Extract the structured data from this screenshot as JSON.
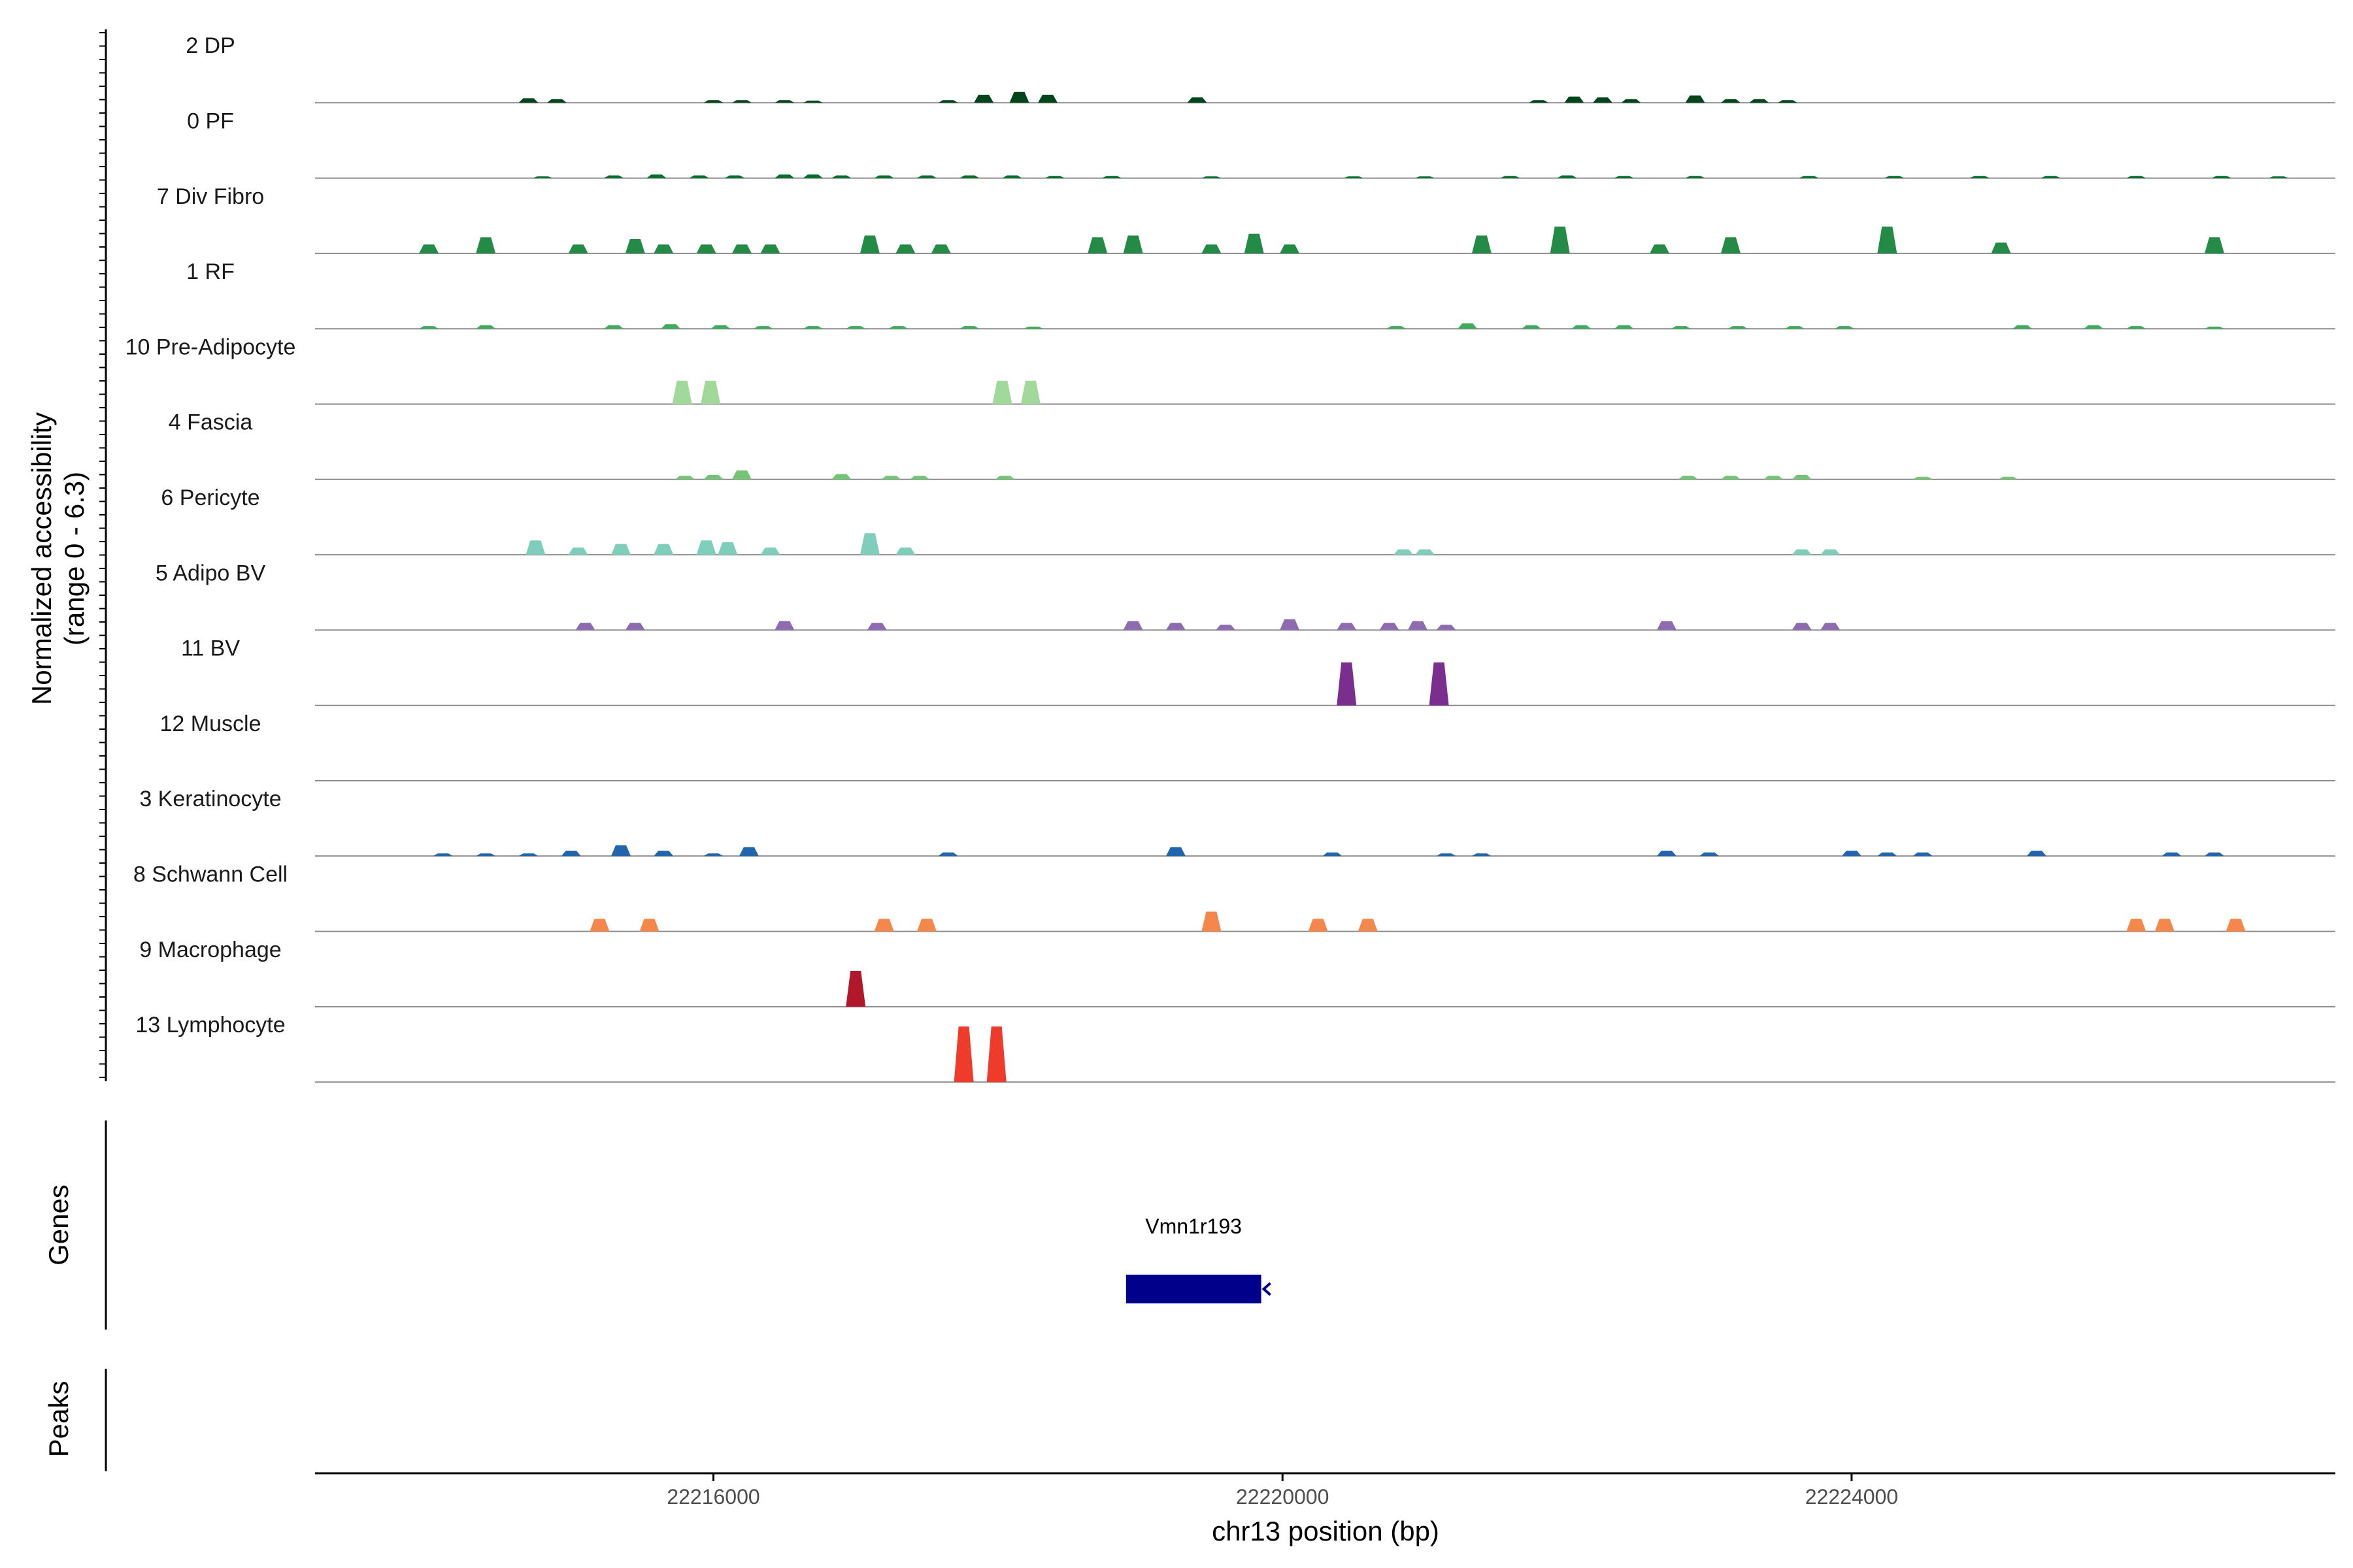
{
  "chart_data": {
    "type": "area",
    "title": "",
    "ylabel": "Normalized accessibility",
    "ylabel_range": "(range 0 - 6.3)",
    "xlabel": "chr13 position (bp)",
    "chromosome": "chr13",
    "xlim": [
      22213200,
      22227400
    ],
    "ylim": [
      0,
      6.3
    ],
    "x_ticks": [
      22216000,
      22220000,
      22224000
    ],
    "x_tick_labels": [
      "22216000",
      "22220000",
      "22224000"
    ],
    "track_panels": [
      "Genes",
      "Peaks"
    ],
    "tracks": [
      {
        "name": "2 DP",
        "color": "#00441b",
        "peaks": [
          [
            22214700,
            0.25
          ],
          [
            22214900,
            0.2
          ],
          [
            22216000,
            0.15
          ],
          [
            22216200,
            0.15
          ],
          [
            22216500,
            0.15
          ],
          [
            22216700,
            0.12
          ],
          [
            22217650,
            0.15
          ],
          [
            22217900,
            0.45
          ],
          [
            22218150,
            0.6
          ],
          [
            22218350,
            0.45
          ],
          [
            22219400,
            0.3
          ],
          [
            22221800,
            0.15
          ],
          [
            22222050,
            0.35
          ],
          [
            22222250,
            0.3
          ],
          [
            22222450,
            0.2
          ],
          [
            22222900,
            0.4
          ],
          [
            22223150,
            0.2
          ],
          [
            22223350,
            0.2
          ],
          [
            22223550,
            0.15
          ]
        ]
      },
      {
        "name": "0 PF",
        "color": "#006d2c",
        "peaks": [
          [
            22214800,
            0.1
          ],
          [
            22215300,
            0.15
          ],
          [
            22215600,
            0.2
          ],
          [
            22215900,
            0.15
          ],
          [
            22216150,
            0.15
          ],
          [
            22216500,
            0.2
          ],
          [
            22216700,
            0.2
          ],
          [
            22216900,
            0.15
          ],
          [
            22217200,
            0.15
          ],
          [
            22217500,
            0.15
          ],
          [
            22217800,
            0.15
          ],
          [
            22218100,
            0.15
          ],
          [
            22218400,
            0.12
          ],
          [
            22218800,
            0.12
          ],
          [
            22219500,
            0.1
          ],
          [
            22220500,
            0.1
          ],
          [
            22221000,
            0.1
          ],
          [
            22221600,
            0.12
          ],
          [
            22222000,
            0.15
          ],
          [
            22222400,
            0.12
          ],
          [
            22222900,
            0.12
          ],
          [
            22223700,
            0.12
          ],
          [
            22224300,
            0.12
          ],
          [
            22224900,
            0.12
          ],
          [
            22225400,
            0.12
          ],
          [
            22226000,
            0.12
          ],
          [
            22226600,
            0.12
          ],
          [
            22227000,
            0.1
          ]
        ]
      },
      {
        "name": "7 Div Fibro",
        "color": "#238b45",
        "peaks": [
          [
            22214000,
            0.5
          ],
          [
            22214400,
            0.9
          ],
          [
            22215050,
            0.5
          ],
          [
            22215450,
            0.8
          ],
          [
            22215650,
            0.5
          ],
          [
            22215950,
            0.5
          ],
          [
            22216200,
            0.5
          ],
          [
            22216400,
            0.5
          ],
          [
            22217100,
            1.0
          ],
          [
            22217350,
            0.5
          ],
          [
            22217600,
            0.5
          ],
          [
            22218700,
            0.9
          ],
          [
            22218950,
            1.0
          ],
          [
            22219500,
            0.5
          ],
          [
            22219800,
            1.1
          ],
          [
            22220050,
            0.5
          ],
          [
            22221400,
            1.0
          ],
          [
            22221950,
            1.5
          ],
          [
            22222650,
            0.5
          ],
          [
            22223150,
            0.9
          ],
          [
            22224250,
            1.5
          ],
          [
            22225050,
            0.6
          ],
          [
            22226550,
            0.9
          ]
        ]
      },
      {
        "name": "1 RF",
        "color": "#41ab5d",
        "peaks": [
          [
            22214000,
            0.15
          ],
          [
            22214400,
            0.2
          ],
          [
            22215300,
            0.2
          ],
          [
            22215700,
            0.25
          ],
          [
            22216050,
            0.2
          ],
          [
            22216350,
            0.15
          ],
          [
            22216700,
            0.15
          ],
          [
            22217000,
            0.15
          ],
          [
            22217300,
            0.15
          ],
          [
            22217800,
            0.15
          ],
          [
            22218250,
            0.12
          ],
          [
            22220800,
            0.15
          ],
          [
            22221300,
            0.3
          ],
          [
            22221750,
            0.2
          ],
          [
            22222100,
            0.2
          ],
          [
            22222400,
            0.2
          ],
          [
            22222800,
            0.15
          ],
          [
            22223200,
            0.15
          ],
          [
            22223600,
            0.15
          ],
          [
            22223950,
            0.15
          ],
          [
            22225200,
            0.2
          ],
          [
            22225700,
            0.2
          ],
          [
            22226000,
            0.15
          ],
          [
            22226550,
            0.12
          ]
        ]
      },
      {
        "name": "10 Pre-Adipocyte",
        "color": "#a1d99b",
        "peaks": [
          [
            22215780,
            1.3
          ],
          [
            22215980,
            1.3
          ],
          [
            22218030,
            1.3
          ],
          [
            22218230,
            1.3
          ]
        ]
      },
      {
        "name": "4 Fascia",
        "color": "#74c476",
        "peaks": [
          [
            22215800,
            0.2
          ],
          [
            22216000,
            0.25
          ],
          [
            22216200,
            0.5
          ],
          [
            22216900,
            0.3
          ],
          [
            22217250,
            0.2
          ],
          [
            22217450,
            0.2
          ],
          [
            22218050,
            0.2
          ],
          [
            22222850,
            0.2
          ],
          [
            22223150,
            0.2
          ],
          [
            22223450,
            0.2
          ],
          [
            22223650,
            0.25
          ],
          [
            22224500,
            0.15
          ],
          [
            22225100,
            0.15
          ]
        ]
      },
      {
        "name": "6 Pericyte",
        "color": "#7fcdbb",
        "peaks": [
          [
            22214750,
            0.8
          ],
          [
            22215050,
            0.4
          ],
          [
            22215350,
            0.6
          ],
          [
            22215650,
            0.6
          ],
          [
            22215950,
            0.8
          ],
          [
            22216100,
            0.7
          ],
          [
            22216400,
            0.4
          ],
          [
            22217100,
            1.2
          ],
          [
            22217350,
            0.4
          ],
          [
            22220850,
            0.3
          ],
          [
            22221000,
            0.3
          ],
          [
            22223650,
            0.3
          ],
          [
            22223850,
            0.3
          ]
        ]
      },
      {
        "name": "5 Adipo BV",
        "color": "#8c6bb1",
        "peaks": [
          [
            22215100,
            0.4
          ],
          [
            22215450,
            0.4
          ],
          [
            22216500,
            0.5
          ],
          [
            22217150,
            0.4
          ],
          [
            22218950,
            0.5
          ],
          [
            22219250,
            0.4
          ],
          [
            22219600,
            0.3
          ],
          [
            22220050,
            0.6
          ],
          [
            22220450,
            0.4
          ],
          [
            22220750,
            0.4
          ],
          [
            22220950,
            0.5
          ],
          [
            22221150,
            0.3
          ],
          [
            22222700,
            0.5
          ],
          [
            22223650,
            0.4
          ],
          [
            22223850,
            0.4
          ]
        ]
      },
      {
        "name": "11 BV",
        "color": "#7a2f8f",
        "peaks": [
          [
            22220450,
            2.4
          ],
          [
            22221100,
            2.4
          ]
        ]
      },
      {
        "name": "12 Muscle",
        "color": "#4d004b",
        "peaks": []
      },
      {
        "name": "3 Keratinocyte",
        "color": "#2166ac",
        "peaks": [
          [
            22214100,
            0.15
          ],
          [
            22214400,
            0.15
          ],
          [
            22214700,
            0.15
          ],
          [
            22215000,
            0.3
          ],
          [
            22215350,
            0.6
          ],
          [
            22215650,
            0.3
          ],
          [
            22216000,
            0.15
          ],
          [
            22216250,
            0.5
          ],
          [
            22217650,
            0.2
          ],
          [
            22219250,
            0.5
          ],
          [
            22220350,
            0.2
          ],
          [
            22221150,
            0.15
          ],
          [
            22221400,
            0.15
          ],
          [
            22222700,
            0.3
          ],
          [
            22223000,
            0.2
          ],
          [
            22224000,
            0.3
          ],
          [
            22224250,
            0.2
          ],
          [
            22224500,
            0.2
          ],
          [
            22225300,
            0.3
          ],
          [
            22226250,
            0.2
          ],
          [
            22226550,
            0.2
          ]
        ]
      },
      {
        "name": "8 Schwann Cell",
        "color": "#f4874b",
        "peaks": [
          [
            22215200,
            0.7
          ],
          [
            22215550,
            0.7
          ],
          [
            22217200,
            0.7
          ],
          [
            22217500,
            0.7
          ],
          [
            22219500,
            1.1
          ],
          [
            22220250,
            0.7
          ],
          [
            22220600,
            0.7
          ],
          [
            22226000,
            0.7
          ],
          [
            22226200,
            0.7
          ],
          [
            22226700,
            0.7
          ]
        ]
      },
      {
        "name": "9 Macrophage",
        "color": "#b2182b",
        "peaks": [
          [
            22217000,
            2.0
          ]
        ]
      },
      {
        "name": "13 Lymphocyte",
        "color": "#ef3b2c",
        "peaks": [
          [
            22217760,
            3.1
          ],
          [
            22217990,
            3.1
          ]
        ]
      }
    ],
    "genes": [
      {
        "name": "Vmn1r193",
        "start": 22218900,
        "end": 22219850,
        "strand": "-",
        "color": "#00008b"
      }
    ]
  }
}
